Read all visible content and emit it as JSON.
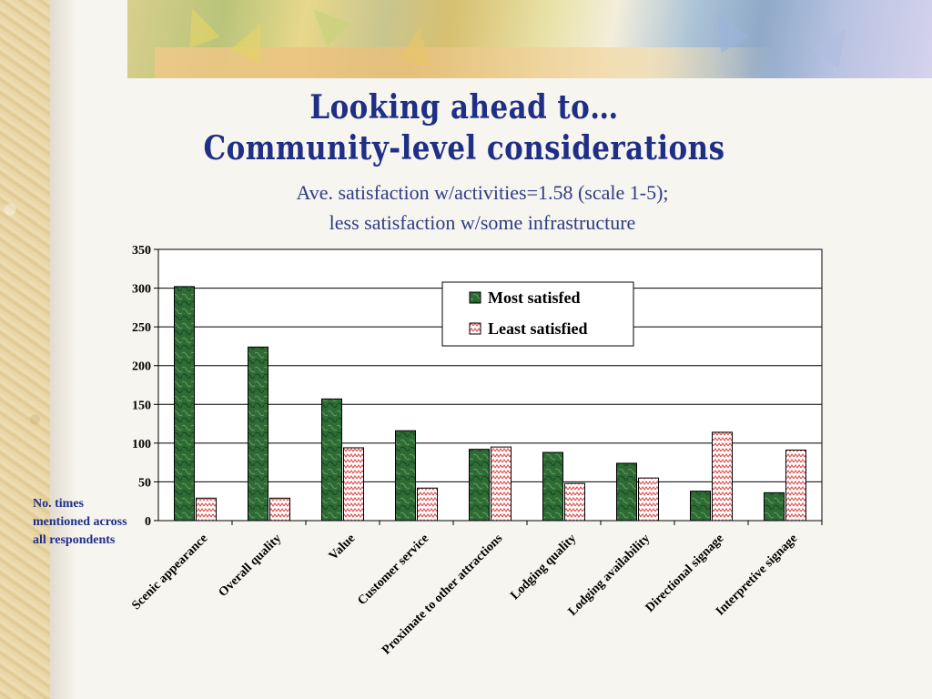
{
  "slide": {
    "title_line1": "Looking ahead to…",
    "title_line2": "Community-level considerations",
    "subtitle_line1": "Ave. satisfaction w/activities=1.58 (scale 1-5);",
    "subtitle_line2": "less satisfaction w/some infrastructure",
    "y_note": "No. times mentioned across all respondents"
  },
  "chart_data": {
    "type": "bar",
    "categories": [
      "Scenic appearance",
      "Overall quality",
      "Value",
      "Customer service",
      "Proximate to other attractions",
      "Lodging quality",
      "Lodging availability",
      "Directional signage",
      "Interpretive signage"
    ],
    "series": [
      {
        "name": "Most satisfed",
        "values": [
          302,
          224,
          157,
          116,
          92,
          88,
          74,
          38,
          36
        ],
        "color": "#2e6b35"
      },
      {
        "name": "Least satisfied",
        "values": [
          29,
          29,
          94,
          42,
          95,
          48,
          55,
          114,
          91
        ],
        "color": "#f08a8a"
      }
    ],
    "ylim": [
      0,
      350
    ],
    "yticks": [
      0,
      50,
      100,
      150,
      200,
      250,
      300,
      350
    ],
    "ylabel": "No. times mentioned across all respondents",
    "grid": true,
    "legend_position": "top-right"
  }
}
